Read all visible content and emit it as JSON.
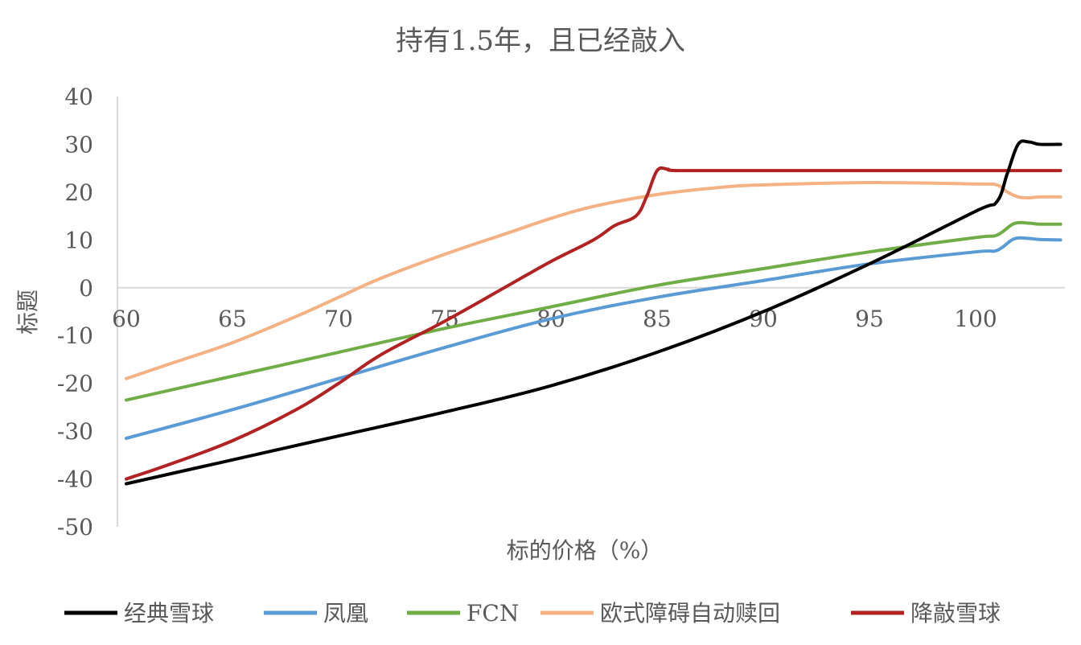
{
  "chart_data": {
    "type": "line",
    "title": "持有1.5年，且已经敲入",
    "xlabel": "标的价格（%）",
    "ylabel": "标题",
    "xlim": [
      60,
      104
    ],
    "ylim": [
      -50,
      40
    ],
    "x_ticks": [
      60,
      65,
      70,
      75,
      80,
      85,
      90,
      95,
      100
    ],
    "y_ticks": [
      40,
      30,
      20,
      10,
      0,
      -10,
      -20,
      -30,
      -40,
      -50
    ],
    "x_tick_labels": [
      "60",
      "65",
      "70",
      "75",
      "80",
      "85",
      "90",
      "95",
      "100"
    ],
    "y_tick_labels": [
      "40",
      "30",
      "20",
      "10",
      "0",
      "-10",
      "-20",
      "-30",
      "-40",
      "-50"
    ],
    "grid": false,
    "legend_position": "bottom",
    "series": [
      {
        "name": "经典雪球",
        "color": "#000000",
        "x": [
          60,
          65,
          70,
          75,
          80,
          85,
          90,
          95,
          100,
          101,
          101.5,
          102,
          102.5,
          103,
          104
        ],
        "y": [
          -41,
          -36,
          -31,
          -26,
          -20.5,
          -13.5,
          -5,
          5,
          16,
          18,
          24,
          30,
          30.5,
          30,
          30
        ]
      },
      {
        "name": "凤凰",
        "color": "#5B9BD5",
        "x": [
          60,
          65,
          70,
          75,
          80,
          85,
          90,
          95,
          100,
          101,
          101.8,
          102.5,
          103,
          104
        ],
        "y": [
          -31.5,
          -25.5,
          -19,
          -12.5,
          -6.5,
          -2,
          1.5,
          5,
          7.5,
          7.8,
          10.2,
          10.3,
          10.1,
          10
        ]
      },
      {
        "name": "FCN",
        "color": "#70AD47",
        "x": [
          60,
          65,
          70,
          75,
          80,
          85,
          90,
          95,
          100,
          101,
          101.8,
          102.5,
          103,
          104
        ],
        "y": [
          -23.5,
          -18.5,
          -13.5,
          -8.5,
          -4,
          0.5,
          4,
          7.5,
          10.5,
          11,
          13.4,
          13.5,
          13.3,
          13.3
        ]
      },
      {
        "name": "欧式障碍自动赎回",
        "color": "#F4B183",
        "x": [
          60,
          62,
          65,
          68,
          70,
          72,
          75,
          78,
          80,
          82,
          85,
          88,
          90,
          95,
          100,
          101,
          101.5,
          102,
          102.5,
          103,
          104
        ],
        "y": [
          -19,
          -16,
          -11.5,
          -6,
          -2,
          2,
          7,
          11.5,
          14.5,
          17,
          19.5,
          21,
          21.5,
          22,
          21.7,
          21.5,
          20,
          19,
          18.8,
          19,
          19
        ]
      },
      {
        "name": "降敲雪球",
        "color": "#B22222",
        "x": [
          60,
          62,
          65,
          68,
          70,
          72,
          75,
          78,
          80,
          82,
          83,
          84,
          84.5,
          85,
          85.5,
          86,
          90,
          95,
          100,
          104
        ],
        "y": [
          -40,
          -37,
          -32,
          -25.5,
          -20,
          -14,
          -7,
          0.5,
          5.5,
          10,
          13,
          15,
          19,
          24.5,
          24.8,
          24.5,
          24.5,
          24.5,
          24.5,
          24.5
        ]
      }
    ]
  }
}
